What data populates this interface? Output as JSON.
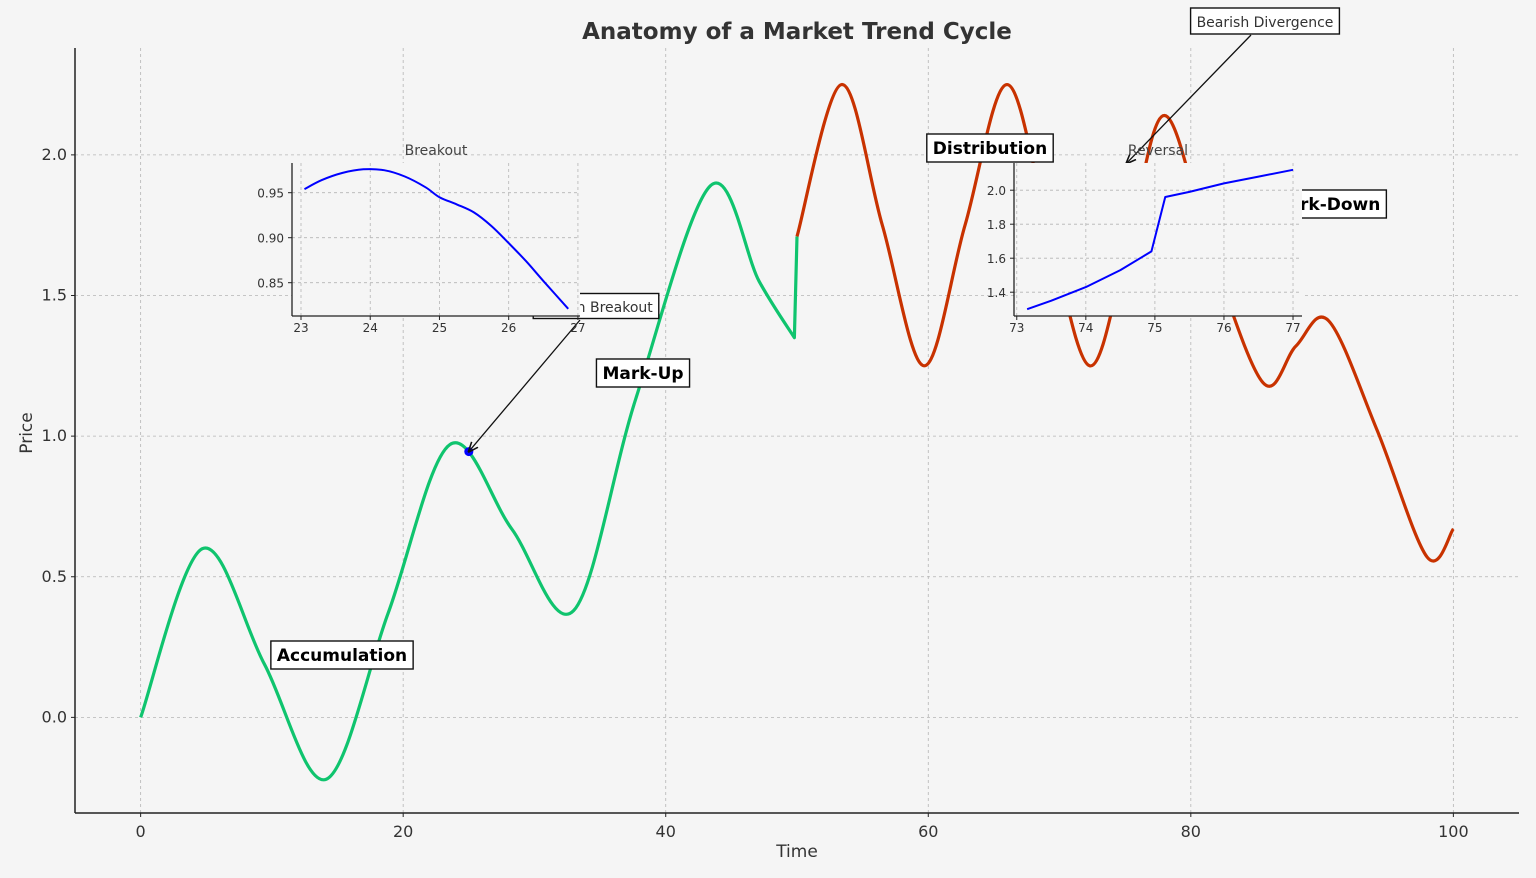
{
  "chart_data": [
    {
      "type": "line",
      "title": "Anatomy of a Market Trend Cycle",
      "xlabel": "Time",
      "ylabel": "Price",
      "xlim": [
        -5,
        105
      ],
      "ylim": [
        -0.34,
        2.38
      ],
      "xticks": [
        0,
        20,
        40,
        60,
        80,
        100
      ],
      "xtick_labels": [
        "0",
        "20",
        "40",
        "60",
        "80",
        "100"
      ],
      "yticks": [
        0,
        0.5,
        1.0,
        1.5,
        2.0
      ],
      "ytick_labels": [
        "0.0",
        "0.5",
        "1.0",
        "1.5",
        "2.0"
      ],
      "grid": true,
      "series": [
        {
          "color": "#0fc46e",
          "points": [
            [
              0,
              0
            ],
            [
              4.71,
              0.6
            ],
            [
              9.42,
              0.19
            ],
            [
              14.14,
              -0.22
            ],
            [
              18.85,
              0.37
            ],
            [
              23.56,
              0.97
            ],
            [
              28.27,
              0.67
            ],
            [
              32.99,
              0.38
            ],
            [
              37.7,
              1.13
            ],
            [
              43.4,
              1.89
            ],
            [
              47.12,
              1.55
            ],
            [
              49.8,
              1.35
            ],
            [
              50,
              1.71
            ]
          ]
        },
        {
          "color": "#c83200",
          "points": [
            [
              50,
              1.71
            ],
            [
              53.4,
              2.25
            ],
            [
              56.5,
              1.75
            ],
            [
              59.7,
              1.25
            ],
            [
              62.8,
              1.75
            ],
            [
              66,
              2.25
            ],
            [
              69.1,
              1.75
            ],
            [
              72.3,
              1.25
            ],
            [
              75.2,
              1.68
            ],
            [
              78,
              2.14
            ],
            [
              81.5,
              1.66
            ],
            [
              85.5,
              1.19
            ],
            [
              88,
              1.32
            ],
            [
              90.5,
              1.41
            ],
            [
              94.2,
              1.02
            ],
            [
              98,
              0.57
            ],
            [
              100,
              0.67
            ]
          ]
        }
      ],
      "marker": {
        "x": 25,
        "y": 0.945,
        "color": "#0000ff"
      },
      "phase_labels": [
        "Accumulation",
        "Mark-Up",
        "Distribution",
        "Mark-Down"
      ],
      "annotations": [
        {
          "text": "Bullish Breakout",
          "target": [
            25,
            0.945
          ]
        },
        {
          "text": "Bearish Divergence",
          "target": [
            75.1,
            1.97
          ]
        }
      ]
    },
    {
      "type": "line",
      "title": "Breakout",
      "xlim": [
        22.87,
        27.03
      ],
      "ylim": [
        0.813,
        0.983
      ],
      "xticks": [
        23,
        24,
        25,
        26,
        27
      ],
      "xtick_labels": [
        "23",
        "24",
        "25",
        "26",
        "27"
      ],
      "yticks": [
        0.85,
        0.9,
        0.95
      ],
      "ytick_labels": [
        "0.85",
        "0.90",
        "0.95"
      ],
      "grid": true,
      "series": [
        {
          "color": "#0000ff",
          "points": [
            [
              23.05,
              0.954
            ],
            [
              23.3,
              0.964
            ],
            [
              23.6,
              0.972
            ],
            [
              23.9,
              0.976
            ],
            [
              24.2,
              0.975
            ],
            [
              24.5,
              0.968
            ],
            [
              24.8,
              0.956
            ],
            [
              25.0,
              0.945
            ],
            [
              25.25,
              0.937
            ],
            [
              25.5,
              0.928
            ],
            [
              25.75,
              0.913
            ],
            [
              26.0,
              0.894
            ],
            [
              26.25,
              0.874
            ],
            [
              26.5,
              0.852
            ],
            [
              26.86,
              0.821
            ]
          ]
        }
      ]
    },
    {
      "type": "line",
      "title": "Reversal",
      "xlim": [
        72.96,
        77.13
      ],
      "ylim": [
        1.26,
        2.16
      ],
      "xticks": [
        73,
        74,
        75,
        76,
        77
      ],
      "xtick_labels": [
        "73",
        "74",
        "75",
        "76",
        "77"
      ],
      "yticks": [
        1.4,
        1.6,
        1.8,
        2.0
      ],
      "ytick_labels": [
        "1.4",
        "1.6",
        "1.8",
        "2.0"
      ],
      "grid": true,
      "series": [
        {
          "color": "#0000ff",
          "points": [
            [
              73.15,
              1.3
            ],
            [
              73.5,
              1.35
            ],
            [
              74,
              1.43
            ],
            [
              74.5,
              1.53
            ],
            [
              74.95,
              1.64
            ],
            [
              75.15,
              1.96
            ],
            [
              75.5,
              1.99
            ],
            [
              76,
              2.04
            ],
            [
              76.5,
              2.08
            ],
            [
              77,
              2.12
            ]
          ]
        }
      ]
    }
  ]
}
